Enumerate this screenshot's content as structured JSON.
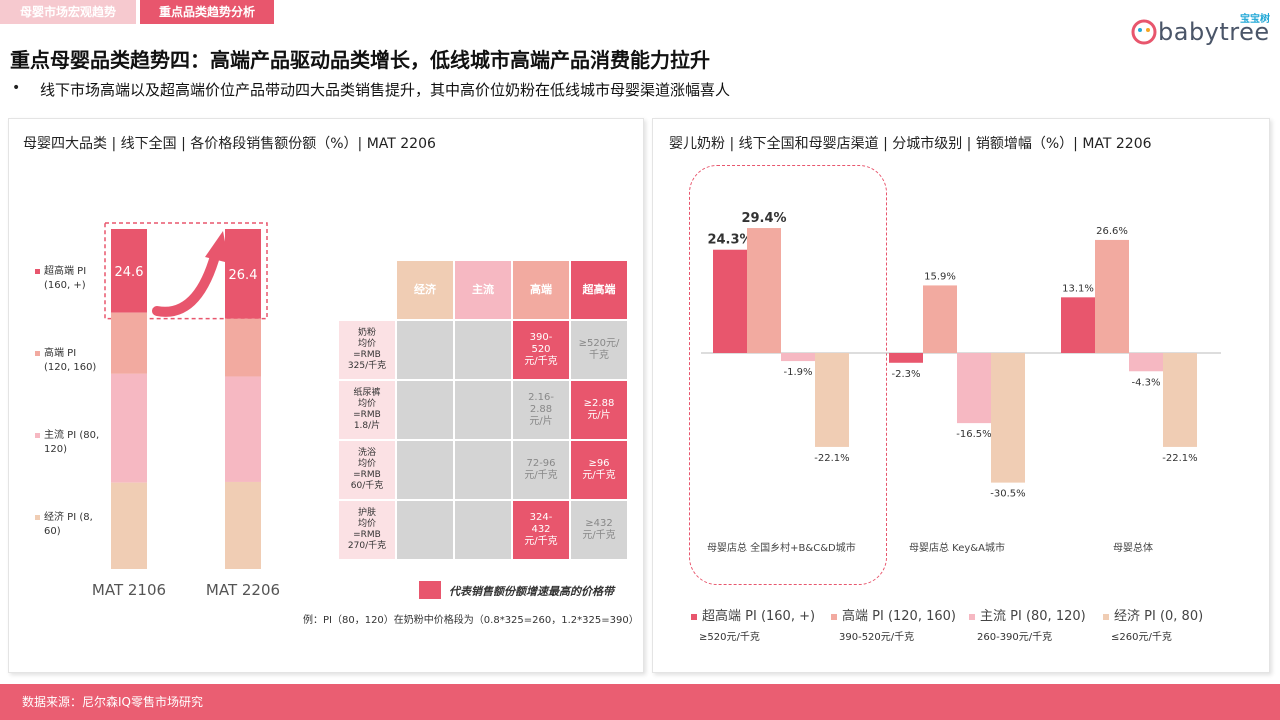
{
  "tabs": [
    "母婴市场宏观趋势",
    "重点品类趋势分析"
  ],
  "logo": {
    "brand": "babytree",
    "brand_cn": "宝宝树"
  },
  "headline": "重点母婴品类趋势四：高端产品驱动品类增长，低线城市高端产品消费能力拉升",
  "bullet": "线下市场高端以及超高端价位产品带动四大品类销售提升，其中高价位奶粉在低线城市母婴渠道涨幅喜人",
  "footer": "数据来源：尼尔森IQ零售市场研究",
  "colors": {
    "super_premium": "#e8566d",
    "premium": "#f2aaa0",
    "mainstream": "#f6b8c2",
    "economy": "#f0cdb4"
  },
  "left": {
    "title": "母婴四大品类 | 线下全国 | 各价格段销售额份额（%）| MAT 2206",
    "legend": [
      {
        "name": "超高端 PI",
        "range": "(160, +)"
      },
      {
        "name": "高端 PI",
        "range": "(120, 160)"
      },
      {
        "name": "主流 PI (80,",
        "range": "120)"
      },
      {
        "name": "经济 PI (8,",
        "range": "60)"
      }
    ],
    "table": {
      "headers": [
        "经济",
        "主流",
        "高端",
        "超高端"
      ],
      "rows": [
        {
          "label": [
            "奶粉",
            "均价",
            "=RMB",
            "325/千克"
          ],
          "cells": [
            "",
            "",
            "390-\n520\n元/千克",
            "≥520元/\n千克"
          ],
          "hl": [
            false,
            false,
            true,
            false
          ]
        },
        {
          "label": [
            "纸尿裤",
            "均价",
            "=RMB",
            "1.8/片"
          ],
          "cells": [
            "",
            "",
            "2.16-\n2.88\n元/片",
            "≥2.88\n元/片"
          ],
          "hl": [
            false,
            false,
            false,
            true
          ]
        },
        {
          "label": [
            "洗浴",
            "均价",
            "=RMB",
            "60/千克"
          ],
          "cells": [
            "",
            "",
            "72-96\n元/千克",
            "≥96\n元/千克"
          ],
          "hl": [
            false,
            false,
            false,
            true
          ]
        },
        {
          "label": [
            "护肤",
            "均价",
            "=RMB",
            "270/千克"
          ],
          "cells": [
            "",
            "",
            "324-\n432\n元/千克",
            "≥432\n元/千克"
          ],
          "hl": [
            false,
            false,
            true,
            false
          ]
        }
      ]
    },
    "hl_legend": "代表销售额份额增速最高的价格带",
    "note": "例：PI（80，120）在奶粉中价格段为（0.8*325=260，1.2*325=390）"
  },
  "right": {
    "title": "婴儿奶粉 | 线下全国和母婴店渠道 | 分城市级别 | 销额增幅（%）| MAT 2206",
    "legend": [
      {
        "name": "超高端 PI (160, +)",
        "sub": "≥520元/千克"
      },
      {
        "name": "高端 PI (120, 160)",
        "sub": "390-520元/千克"
      },
      {
        "name": "主流 PI (80, 120)",
        "sub": "260-390元/千克"
      },
      {
        "name": "经济 PI (0, 80)",
        "sub": "≤260元/千克"
      }
    ]
  },
  "chart_data": [
    {
      "type": "bar",
      "stacked": true,
      "title": "母婴四大品类 | 线下全国 | 各价格段销售额份额（%）| MAT 2206",
      "categories": [
        "MAT 2106",
        "MAT 2206"
      ],
      "series": [
        {
          "name": "超高端 PI",
          "values": [
            24.6,
            26.4
          ]
        },
        {
          "name": "高端 PI",
          "values": [
            18,
            17
          ]
        },
        {
          "name": "主流 PI (80, 120)",
          "values": [
            32,
            31
          ]
        },
        {
          "name": "经济 PI (8, 60)",
          "values": [
            25.4,
            25.6
          ]
        }
      ],
      "labels": [
        "24.6",
        "26.4"
      ],
      "ylim": [
        0,
        100
      ]
    },
    {
      "type": "bar",
      "title": "婴儿奶粉 | 线下全国和母婴店渠道 | 分城市级别 | 销额增幅（%）| MAT 2206",
      "categories": [
        "母婴店总 全国乡村+B&C&D城市",
        "母婴店总 Key&A城市",
        "母婴总体"
      ],
      "series": [
        {
          "name": "超高端 PI (160, +)",
          "values": [
            24.3,
            -2.3,
            13.1
          ]
        },
        {
          "name": "高端 PI (120, 160)",
          "values": [
            29.4,
            15.9,
            26.6
          ]
        },
        {
          "name": "主流 PI (80, 120)",
          "values": [
            -1.9,
            -16.5,
            -4.3
          ]
        },
        {
          "name": "经济 PI (0, 80)",
          "values": [
            -22.1,
            -30.5,
            -22.1
          ]
        }
      ],
      "labels": [
        [
          "24.3%",
          "-2.3%",
          "13.1%"
        ],
        [
          "29.4%",
          "15.9%",
          "26.6%"
        ],
        [
          "-1.9%",
          "-16.5%",
          "-4.3%"
        ],
        [
          "-22.1%",
          "-30.5%",
          "-22.1%"
        ]
      ],
      "ylim": [
        -35,
        35
      ]
    }
  ]
}
